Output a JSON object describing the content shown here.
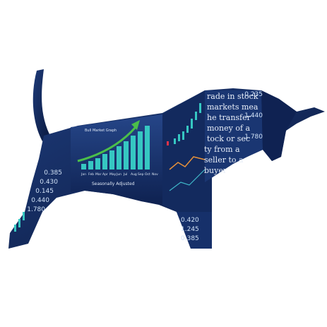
{
  "chart_panel": {
    "title": "Bull Market Graph",
    "months": [
      "Jan",
      "Feb",
      "Mar",
      "Apr",
      "May",
      "Jun",
      "Jul",
      "Aug",
      "Sep",
      "Oct",
      "Nov"
    ],
    "caption": "Seasonally Adjusted"
  },
  "text_panel": {
    "lines": [
      "rade in stock",
      "markets mea",
      "he transfer",
      "money of a",
      "tock or sec",
      "ty from a",
      "seller to a",
      "buyer"
    ]
  },
  "price_tickers": {
    "left": [
      "0.385",
      "0.430",
      "0.145",
      "0.440",
      "1.780"
    ],
    "right": [
      "0.235",
      "1.440",
      "1.780"
    ],
    "bottom": [
      "0.420",
      "1.245",
      "0.385"
    ]
  }
}
